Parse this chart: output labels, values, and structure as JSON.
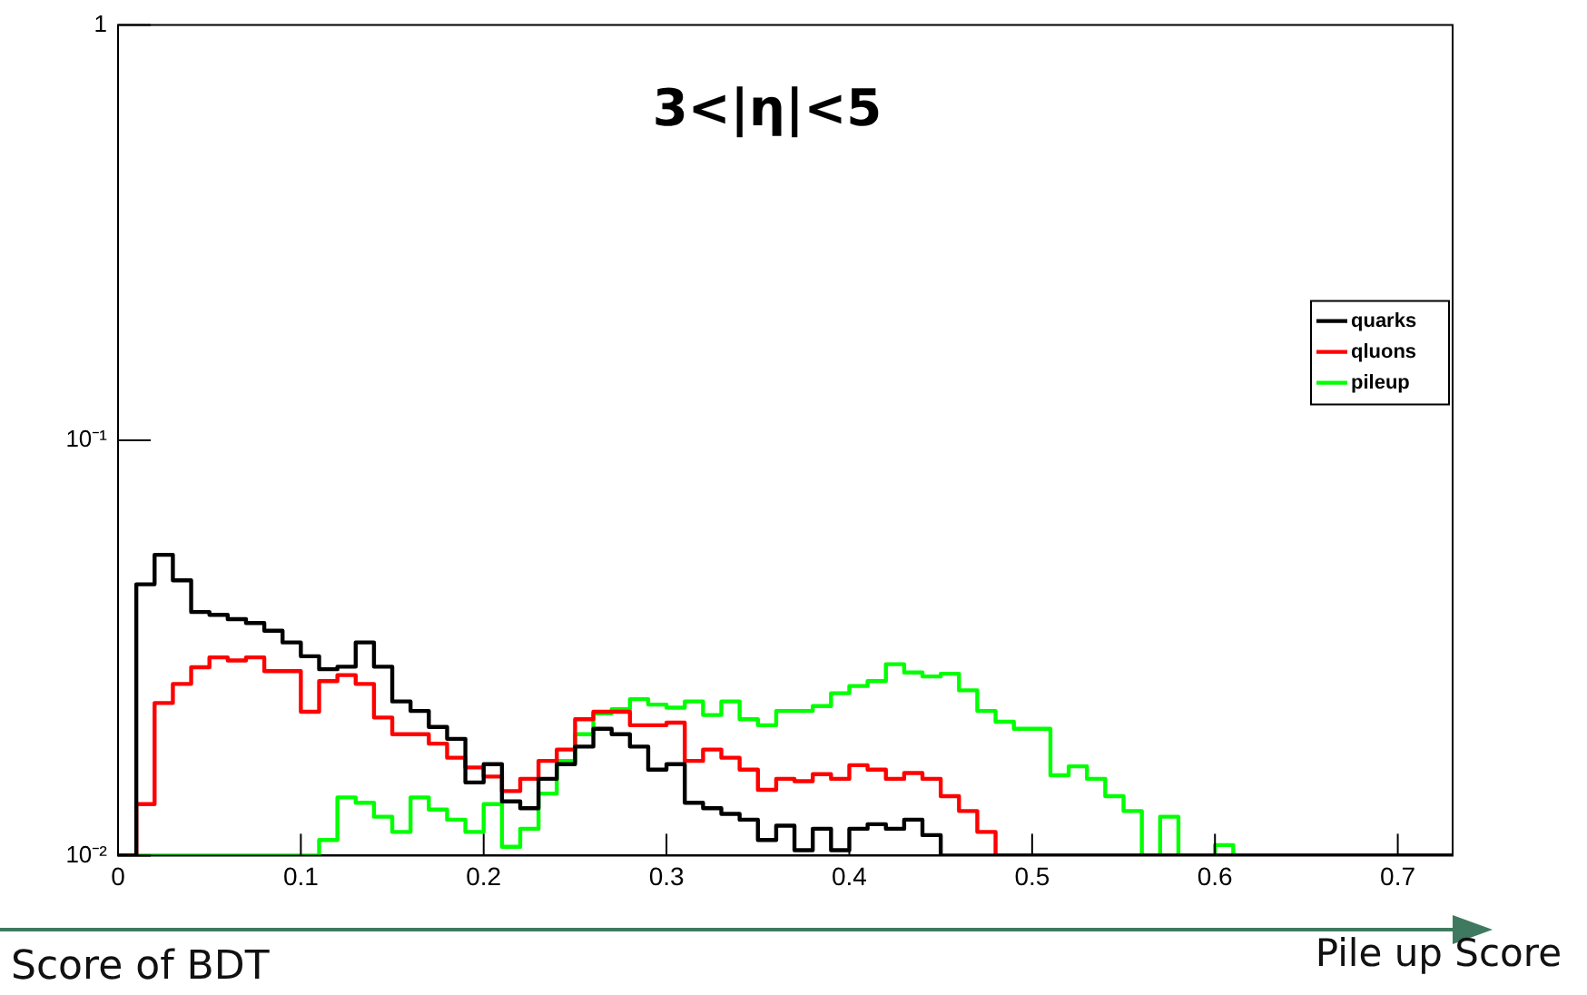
{
  "chart_data": {
    "type": "histogram",
    "annotations": [
      "3<|η|<5",
      "Pile up Score",
      "Score of BDT"
    ],
    "bins": [
      0,
      0.01,
      0.02,
      0.03,
      0.04,
      0.05,
      0.06,
      0.07,
      0.08,
      0.09,
      0.1,
      0.11,
      0.12,
      0.13,
      0.14,
      0.15,
      0.16,
      0.17,
      0.18,
      0.19,
      0.2,
      0.21,
      0.22,
      0.23,
      0.24,
      0.25,
      0.26,
      0.27,
      0.28,
      0.29,
      0.3,
      0.31,
      0.32,
      0.33,
      0.34,
      0.35,
      0.36,
      0.37,
      0.38,
      0.39,
      0.4,
      0.41,
      0.42,
      0.43,
      0.44,
      0.45,
      0.46,
      0.47,
      0.48,
      0.49,
      0.5,
      0.51,
      0.52,
      0.53,
      0.54,
      0.55,
      0.56,
      0.57,
      0.58,
      0.59,
      0.6,
      0.61,
      0.62,
      0.63,
      0.64,
      0.65,
      0.66,
      0.67,
      0.68,
      0.69,
      0.7,
      0.71,
      0.72,
      0.73
    ],
    "series": [
      {
        "name": "quarks",
        "color": "#000000",
        "values": [
          0.01,
          0.045,
          0.053,
          0.046,
          0.0386,
          0.038,
          0.0371,
          0.0363,
          0.0348,
          0.0326,
          0.0302,
          0.0281,
          0.0285,
          0.0326,
          0.0285,
          0.0235,
          0.0223,
          0.0204,
          0.0191,
          0.015,
          0.0166,
          0.0135,
          0.013,
          0.0153,
          0.0166,
          0.0183,
          0.0202,
          0.0196,
          0.0183,
          0.0161,
          0.0166,
          0.0134,
          0.013,
          0.0126,
          0.0122,
          0.0109,
          0.0118,
          0.0103,
          0.0116,
          0.0103,
          0.0116,
          0.0119,
          0.0116,
          0.0122,
          0.0112,
          0.01,
          0.01,
          0.01,
          0.01,
          0.01,
          0.01,
          0.01,
          0.01,
          0.01,
          0.01,
          0.01,
          0.01,
          0.01,
          0.01,
          0.01,
          0.01,
          0.01,
          0.01,
          0.01,
          0.01,
          0.01,
          0.01,
          0.01,
          0.01,
          0.01,
          0.01,
          0.01,
          0.01
        ]
      },
      {
        "name": "qluons",
        "color": "#ff0000",
        "values": [
          0.01,
          0.0133,
          0.0233,
          0.0259,
          0.0284,
          0.03,
          0.0295,
          0.03,
          0.0278,
          0.0278,
          0.0222,
          0.0263,
          0.0272,
          0.0259,
          0.0215,
          0.0196,
          0.0196,
          0.0186,
          0.0172,
          0.0163,
          0.0155,
          0.0143,
          0.0153,
          0.0169,
          0.018,
          0.0213,
          0.0222,
          0.0222,
          0.0206,
          0.0206,
          0.0209,
          0.0169,
          0.018,
          0.0172,
          0.0161,
          0.0144,
          0.0153,
          0.0151,
          0.0157,
          0.0153,
          0.0165,
          0.0161,
          0.0153,
          0.0158,
          0.0153,
          0.0139,
          0.0128,
          0.0114,
          0.01,
          0.01,
          0.01,
          0.01,
          0.01,
          0.01,
          0.01,
          0.01,
          0.01,
          0.01,
          0.01,
          0.01,
          0.01,
          0.01,
          0.01,
          0.01,
          0.01,
          0.01,
          0.01,
          0.01,
          0.01,
          0.01,
          0.01,
          0.01,
          0.01
        ]
      },
      {
        "name": "pileup",
        "color": "#00ff00",
        "values": [
          0.01,
          0.01,
          0.01,
          0.01,
          0.01,
          0.01,
          0.01,
          0.01,
          0.01,
          0.01,
          0.01,
          0.0109,
          0.0138,
          0.0134,
          0.0124,
          0.0114,
          0.0138,
          0.0129,
          0.0122,
          0.0114,
          0.0133,
          0.0105,
          0.0116,
          0.0141,
          0.0169,
          0.0196,
          0.022,
          0.0225,
          0.0238,
          0.0231,
          0.0227,
          0.0235,
          0.0218,
          0.0235,
          0.0213,
          0.0206,
          0.0223,
          0.0223,
          0.0229,
          0.0246,
          0.0256,
          0.0263,
          0.0289,
          0.0276,
          0.027,
          0.0274,
          0.025,
          0.0223,
          0.021,
          0.0202,
          0.0202,
          0.0156,
          0.0164,
          0.0153,
          0.0139,
          0.0128,
          0.01,
          0.0124,
          0.01,
          0.01,
          0.0106,
          0.01,
          0.01,
          0.01,
          0.01,
          0.01,
          0.01,
          0.01,
          0.01,
          0.01,
          0.01,
          0.01,
          0.01
        ]
      }
    ],
    "xlim": [
      0,
      0.73
    ],
    "xticks": [
      0,
      0.1,
      0.2,
      0.3,
      0.4,
      0.5,
      0.6,
      0.7
    ],
    "ylim": [
      0.01,
      1
    ],
    "yticks": [
      {
        "value": 0.01,
        "label": "10⁻²"
      },
      {
        "value": 0.1,
        "label": "10⁻¹"
      },
      1
    ],
    "log": true,
    "grid": false,
    "legend": "right"
  }
}
